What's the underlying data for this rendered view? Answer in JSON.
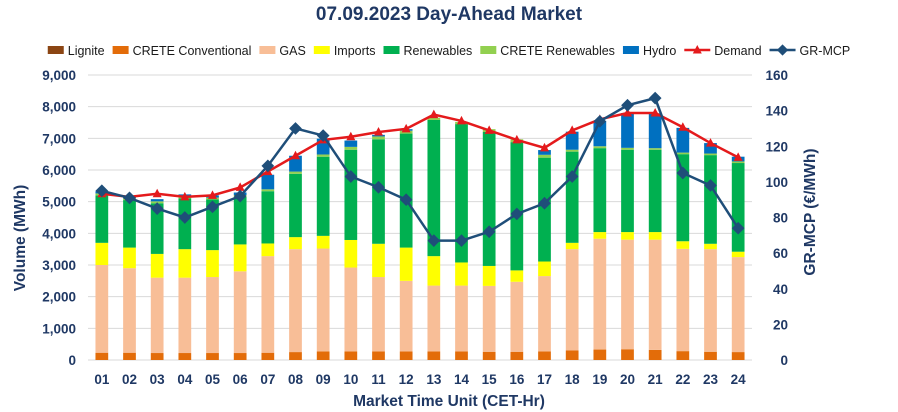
{
  "chart_data": {
    "type": "bar",
    "title": "07.09.2023  Day-Ahead Market",
    "xlabel": "Market Time Unit (CET-Hr)",
    "ylabel": "Volume (MWh)",
    "y2label": "GR-MCP (€/MWh)",
    "ylim": [
      0,
      9000
    ],
    "y2lim": [
      0,
      160
    ],
    "yticks": [
      "0",
      "1,000",
      "2,000",
      "3,000",
      "4,000",
      "5,000",
      "6,000",
      "7,000",
      "8,000",
      "9,000"
    ],
    "y2ticks": [
      "0",
      "20",
      "40",
      "60",
      "80",
      "100",
      "120",
      "140",
      "160"
    ],
    "categories": [
      "01",
      "02",
      "03",
      "04",
      "05",
      "06",
      "07",
      "08",
      "09",
      "10",
      "11",
      "12",
      "13",
      "14",
      "15",
      "16",
      "17",
      "18",
      "19",
      "20",
      "21",
      "22",
      "23",
      "24"
    ],
    "series": [
      {
        "name": "Lignite",
        "type": "bar",
        "color": "#8b4513",
        "values": [
          0,
          0,
          0,
          0,
          0,
          0,
          0,
          0,
          0,
          0,
          0,
          0,
          0,
          0,
          0,
          0,
          0,
          0,
          0,
          0,
          0,
          0,
          0,
          0
        ]
      },
      {
        "name": "CRETE Conventional",
        "type": "bar",
        "color": "#e36c09",
        "values": [
          230,
          230,
          220,
          220,
          220,
          220,
          230,
          250,
          270,
          270,
          270,
          270,
          270,
          270,
          260,
          260,
          270,
          300,
          330,
          340,
          320,
          280,
          260,
          250
        ]
      },
      {
        "name": "GAS",
        "type": "bar",
        "color": "#f8be97",
        "values": [
          2770,
          2670,
          2380,
          2380,
          2400,
          2580,
          3050,
          3250,
          3250,
          2650,
          2350,
          2230,
          2080,
          2080,
          2080,
          2210,
          2380,
          3200,
          3500,
          3460,
          3480,
          3230,
          3240,
          3000
        ]
      },
      {
        "name": "Imports",
        "type": "bar",
        "color": "#ffff00",
        "values": [
          700,
          650,
          750,
          900,
          850,
          850,
          400,
          380,
          400,
          870,
          1050,
          1050,
          930,
          730,
          630,
          360,
          460,
          200,
          210,
          240,
          240,
          240,
          170,
          170
        ]
      },
      {
        "name": "Renewables",
        "type": "bar",
        "color": "#00b050",
        "values": [
          1500,
          1500,
          1600,
          1600,
          1600,
          1500,
          1650,
          2000,
          2500,
          2850,
          3300,
          3600,
          4300,
          4370,
          4230,
          4050,
          3280,
          2880,
          2650,
          2600,
          2600,
          2750,
          2800,
          2800
        ]
      },
      {
        "name": "CRETE Renewables",
        "type": "bar",
        "color": "#92d050",
        "values": [
          60,
          50,
          60,
          60,
          60,
          60,
          60,
          70,
          70,
          90,
          90,
          90,
          70,
          70,
          90,
          90,
          90,
          60,
          60,
          60,
          50,
          50,
          50,
          50
        ]
      },
      {
        "name": "Hydro",
        "type": "bar",
        "color": "#0070c0",
        "values": [
          70,
          50,
          70,
          70,
          70,
          80,
          460,
          500,
          500,
          200,
          50,
          50,
          0,
          0,
          0,
          0,
          150,
          570,
          800,
          1100,
          1100,
          780,
          330,
          150
        ]
      },
      {
        "name": "Demand",
        "type": "line",
        "color": "#e41a1c",
        "axis": "left",
        "values": [
          5250,
          5150,
          5250,
          5150,
          5200,
          5450,
          5950,
          6450,
          6950,
          7050,
          7200,
          7300,
          7750,
          7550,
          7250,
          6950,
          6700,
          7250,
          7600,
          7800,
          7800,
          7350,
          6850,
          6400
        ]
      },
      {
        "name": "GR-MCP",
        "type": "line",
        "color": "#1f4e79",
        "axis": "right",
        "values": [
          95,
          91,
          85,
          80,
          86,
          92,
          109,
          130,
          126,
          103,
          97,
          90,
          67,
          67,
          72,
          82,
          88,
          103,
          134,
          143,
          147,
          105,
          98,
          74
        ]
      }
    ]
  }
}
